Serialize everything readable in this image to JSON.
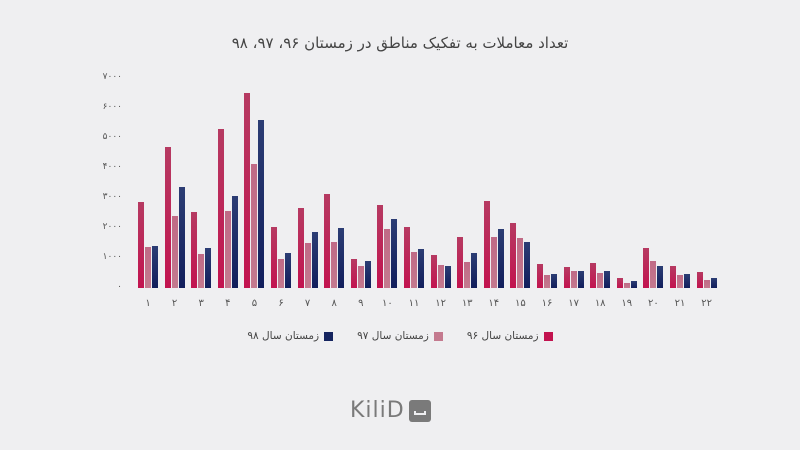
{
  "title": "تعداد معاملات به تفکیک مناطق در زمستان ۹۶، ۹۷، ۹۸",
  "colors": {
    "s96": "#c2134f",
    "s97": "#c47a8f",
    "s98": "#15245f"
  },
  "yticks": [
    "۰",
    "۱۰۰۰",
    "۲۰۰۰",
    "۳۰۰۰",
    "۴۰۰۰",
    "۵۰۰۰",
    "۶۰۰۰",
    "۷۰۰۰"
  ],
  "legend": [
    "زمستان سال ۹۶",
    "زمستان سال ۹۷",
    "زمستان سال ۹۸"
  ],
  "logo": "KiliD",
  "chart_data": {
    "type": "bar",
    "title": "تعداد معاملات به تفکیک مناطق در زمستان ۹۶، ۹۷، ۹۸",
    "xlabel": "",
    "ylabel": "",
    "ylim": [
      0,
      7000
    ],
    "grid": false,
    "legend_position": "bottom",
    "categories": [
      "۱",
      "۲",
      "۳",
      "۴",
      "۵",
      "۶",
      "۷",
      "۸",
      "۹",
      "۱۰",
      "۱۱",
      "۱۲",
      "۱۳",
      "۱۴",
      "۱۵",
      "۱۶",
      "۱۷",
      "۱۸",
      "۱۹",
      "۲۰",
      "۲۱",
      "۲۲"
    ],
    "series": [
      {
        "name": "زمستان سال ۹۶",
        "values": [
          2870,
          4700,
          2530,
          5300,
          6500,
          2030,
          2670,
          3130,
          970,
          2770,
          2030,
          1100,
          1700,
          2900,
          2170,
          800,
          700,
          830,
          330,
          1330,
          730,
          530
        ]
      },
      {
        "name": "زمستان سال ۹۷",
        "values": [
          1370,
          2400,
          1130,
          2570,
          4130,
          970,
          1500,
          1530,
          730,
          1970,
          1200,
          770,
          870,
          1700,
          1670,
          430,
          570,
          500,
          170,
          900,
          430,
          270
        ]
      },
      {
        "name": "زمستان سال ۹۸",
        "values": [
          1400,
          3370,
          1330,
          3070,
          5600,
          1170,
          1870,
          2000,
          900,
          2300,
          1300,
          730,
          1170,
          1970,
          1530,
          470,
          570,
          570,
          230,
          730,
          470,
          330
        ]
      }
    ]
  }
}
